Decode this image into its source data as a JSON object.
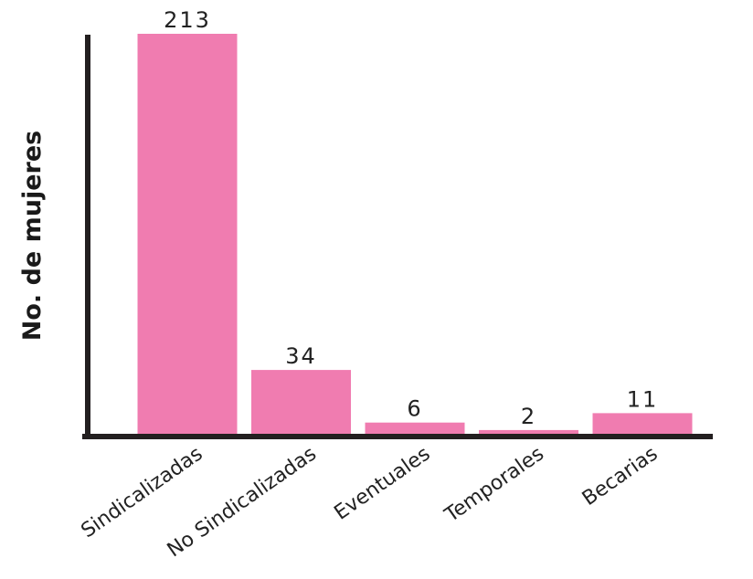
{
  "chart_data": {
    "type": "bar",
    "title": "",
    "xlabel": "",
    "ylabel": "No. de mujeres",
    "categories": [
      "Sindicalizadas",
      "No Sindicalizadas",
      "Eventuales",
      "Temporales",
      "Becarias"
    ],
    "values": [
      213,
      34,
      6,
      2,
      11
    ],
    "value_labels": [
      "213",
      "34",
      "6",
      "2",
      "11"
    ],
    "ylim": [
      0,
      213
    ],
    "grid": false,
    "bar_color": "#f07cb0",
    "axis_color": "#231f20"
  }
}
